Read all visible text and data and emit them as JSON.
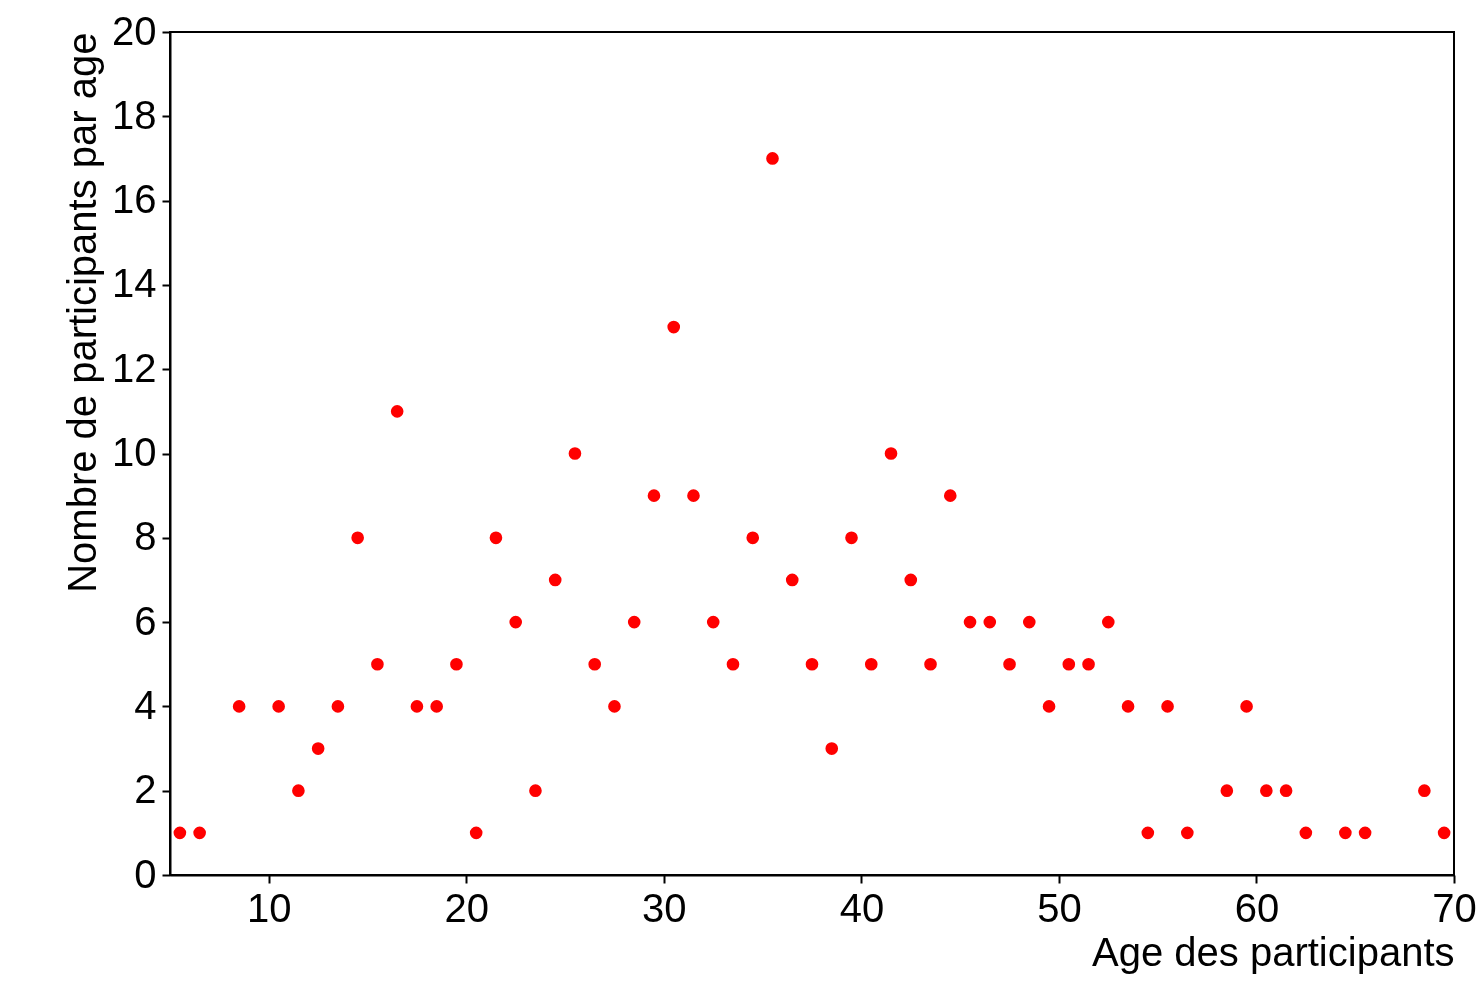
{
  "chart_data": {
    "type": "scatter",
    "xlabel": "Age des participants",
    "ylabel": "Nombre de participants par age",
    "marker": "circle",
    "grid": false,
    "xlim": [
      5,
      70
    ],
    "ylim": [
      0,
      20
    ],
    "xticks": [
      10,
      20,
      30,
      40,
      50,
      60,
      70
    ],
    "yticks": [
      0,
      2,
      4,
      6,
      8,
      10,
      12,
      14,
      16,
      18,
      20
    ],
    "x": [
      5.5,
      6.5,
      8.5,
      10.5,
      11.5,
      12.5,
      13.5,
      14.5,
      15.5,
      16.5,
      17.5,
      18.5,
      19.5,
      20.5,
      21.5,
      22.5,
      23.5,
      24.5,
      25.5,
      26.5,
      27.5,
      28.5,
      29.5,
      30.5,
      31.5,
      32.5,
      33.5,
      34.5,
      35.5,
      36.5,
      37.5,
      38.5,
      39.5,
      40.5,
      41.5,
      42.5,
      43.5,
      44.5,
      45.5,
      46.5,
      47.5,
      48.5,
      49.5,
      50.5,
      51.5,
      52.5,
      53.5,
      54.5,
      55.5,
      56.5,
      58.5,
      59.5,
      60.5,
      61.5,
      62.5,
      64.5,
      65.5,
      68.5,
      69.5
    ],
    "series": [
      {
        "color": "#ff0000",
        "values": [
          1,
          1,
          4,
          4,
          2,
          3,
          4,
          8,
          5,
          11,
          4,
          4,
          5,
          1,
          8,
          6,
          2,
          7,
          10,
          5,
          4,
          6,
          9,
          13,
          9,
          6,
          5,
          8,
          17,
          7,
          5,
          3,
          8,
          5,
          10,
          7,
          5,
          9,
          6,
          6,
          5,
          6,
          4,
          5,
          5,
          6,
          4,
          1,
          4,
          1,
          2,
          4,
          2,
          2,
          1,
          1,
          1,
          2,
          1
        ]
      }
    ]
  }
}
